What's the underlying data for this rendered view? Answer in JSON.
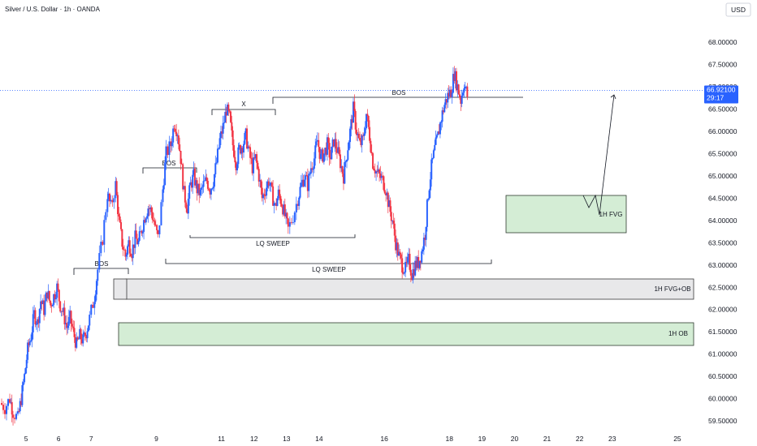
{
  "chart_data": {
    "type": "candlestick",
    "title": "Silver / U.S. Dollar · 1h · OANDA",
    "currency": "USD",
    "ylim": [
      59.3,
      68.55
    ],
    "yticks": [
      "68.00000",
      "67.50000",
      "67.00000",
      "66.50000",
      "66.00000",
      "65.50000",
      "65.00000",
      "64.50000",
      "64.00000",
      "63.50000",
      "63.00000",
      "62.50000",
      "62.00000",
      "61.50000",
      "61.00000",
      "60.50000",
      "60.00000",
      "59.50000"
    ],
    "xlim": [
      4.2,
      25.8
    ],
    "xticks": [
      "5",
      "6",
      "7",
      "9",
      "11",
      "12",
      "13",
      "14",
      "16",
      "18",
      "19",
      "20",
      "21",
      "22",
      "23",
      "25"
    ],
    "last_price": "66.92100",
    "countdown": "29:17",
    "colors": {
      "up": "#2962ff",
      "down": "#f23645",
      "price_line": "#2962ff"
    },
    "path": [
      [
        4.2,
        59.9
      ],
      [
        4.35,
        59.8
      ],
      [
        4.5,
        60.0
      ],
      [
        4.6,
        59.7
      ],
      [
        4.75,
        59.55
      ],
      [
        4.85,
        60.0
      ],
      [
        4.95,
        60.5
      ],
      [
        5.05,
        61.1
      ],
      [
        5.15,
        61.4
      ],
      [
        5.25,
        61.9
      ],
      [
        5.35,
        61.7
      ],
      [
        5.45,
        62.2
      ],
      [
        5.55,
        62.0
      ],
      [
        5.65,
        62.4
      ],
      [
        5.75,
        62.1
      ],
      [
        5.85,
        62.3
      ],
      [
        5.95,
        62.5
      ],
      [
        6.05,
        62.1
      ],
      [
        6.15,
        61.9
      ],
      [
        6.25,
        61.6
      ],
      [
        6.35,
        61.8
      ],
      [
        6.45,
        61.5
      ],
      [
        6.55,
        61.2
      ],
      [
        6.65,
        61.4
      ],
      [
        6.75,
        61.3
      ],
      [
        6.85,
        61.5
      ],
      [
        6.95,
        61.8
      ],
      [
        7.1,
        62.3
      ],
      [
        7.2,
        62.9
      ],
      [
        7.35,
        63.6
      ],
      [
        7.5,
        64.6
      ],
      [
        7.6,
        64.3
      ],
      [
        7.75,
        64.8
      ],
      [
        7.85,
        64.0
      ],
      [
        7.95,
        63.5
      ],
      [
        8.05,
        63.2
      ],
      [
        8.15,
        63.5
      ],
      [
        8.25,
        63.3
      ],
      [
        8.35,
        63.6
      ],
      [
        8.45,
        63.5
      ],
      [
        8.55,
        63.8
      ],
      [
        8.65,
        64.1
      ],
      [
        8.75,
        64.3
      ],
      [
        8.85,
        64.2
      ],
      [
        8.95,
        63.9
      ],
      [
        9.05,
        63.6
      ],
      [
        9.2,
        64.7
      ],
      [
        9.3,
        65.5
      ],
      [
        9.45,
        65.7
      ],
      [
        9.55,
        66.2
      ],
      [
        9.65,
        66.0
      ],
      [
        9.75,
        65.4
      ],
      [
        9.85,
        64.6
      ],
      [
        9.95,
        64.3
      ],
      [
        10.05,
        64.8
      ],
      [
        10.15,
        65.0
      ],
      [
        10.25,
        64.7
      ],
      [
        10.35,
        64.6
      ],
      [
        10.45,
        64.8
      ],
      [
        10.55,
        64.9
      ],
      [
        10.65,
        64.7
      ],
      [
        10.75,
        64.9
      ],
      [
        10.85,
        65.3
      ],
      [
        10.95,
        65.8
      ],
      [
        11.05,
        66.1
      ],
      [
        11.15,
        66.5
      ],
      [
        11.25,
        66.3
      ],
      [
        11.35,
        65.7
      ],
      [
        11.45,
        65.3
      ],
      [
        11.55,
        65.6
      ],
      [
        11.65,
        65.7
      ],
      [
        11.75,
        65.9
      ],
      [
        11.85,
        65.5
      ],
      [
        11.95,
        65.2
      ],
      [
        12.05,
        65.4
      ],
      [
        12.15,
        65.0
      ],
      [
        12.25,
        64.5
      ],
      [
        12.35,
        64.7
      ],
      [
        12.45,
        64.9
      ],
      [
        12.55,
        64.6
      ],
      [
        12.65,
        64.3
      ],
      [
        12.75,
        64.6
      ],
      [
        12.85,
        64.4
      ],
      [
        12.95,
        64.1
      ],
      [
        13.05,
        63.8
      ],
      [
        13.2,
        64.1
      ],
      [
        13.35,
        64.5
      ],
      [
        13.45,
        64.8
      ],
      [
        13.55,
        65.0
      ],
      [
        13.65,
        64.8
      ],
      [
        13.75,
        65.2
      ],
      [
        13.85,
        65.4
      ],
      [
        13.95,
        65.8
      ],
      [
        14.05,
        65.4
      ],
      [
        14.15,
        65.5
      ],
      [
        14.25,
        65.7
      ],
      [
        14.35,
        65.4
      ],
      [
        14.45,
        65.8
      ],
      [
        14.55,
        65.6
      ],
      [
        14.65,
        65.3
      ],
      [
        14.75,
        65.0
      ],
      [
        14.85,
        65.5
      ],
      [
        14.95,
        66.0
      ],
      [
        15.05,
        66.5
      ],
      [
        15.15,
        66.0
      ],
      [
        15.25,
        65.7
      ],
      [
        15.35,
        65.8
      ],
      [
        15.45,
        66.4
      ],
      [
        15.55,
        65.9
      ],
      [
        15.65,
        65.3
      ],
      [
        15.75,
        65.1
      ],
      [
        15.85,
        65.0
      ],
      [
        15.95,
        64.9
      ],
      [
        16.05,
        64.7
      ],
      [
        16.15,
        64.3
      ],
      [
        16.25,
        64.0
      ],
      [
        16.35,
        63.5
      ],
      [
        16.45,
        63.2
      ],
      [
        16.55,
        63.0
      ],
      [
        16.65,
        62.9
      ],
      [
        16.75,
        63.1
      ],
      [
        16.85,
        62.8
      ],
      [
        16.95,
        63.0
      ],
      [
        17.05,
        63.05
      ],
      [
        17.15,
        63.3
      ],
      [
        17.25,
        63.7
      ],
      [
        17.35,
        64.6
      ],
      [
        17.45,
        65.2
      ],
      [
        17.55,
        65.6
      ],
      [
        17.65,
        65.9
      ],
      [
        17.75,
        66.3
      ],
      [
        17.85,
        66.6
      ],
      [
        17.95,
        66.8
      ],
      [
        18.05,
        66.9
      ],
      [
        18.15,
        67.3
      ],
      [
        18.25,
        67.0
      ],
      [
        18.35,
        66.7
      ],
      [
        18.45,
        67.1
      ],
      [
        18.55,
        66.8
      ]
    ],
    "annotations": {
      "bos_1": "BOS",
      "bos_2": "BOS",
      "bos_3": "BOS",
      "x_label": "X",
      "lq_sweep_1": "LQ SWEEP",
      "lq_sweep_2": "LQ SWEEP",
      "zone_1h_fvg": "1H FVG",
      "zone_1h_fvg_ob": "1H FVG+OB",
      "zone_1h_ob": "1H OB"
    }
  }
}
